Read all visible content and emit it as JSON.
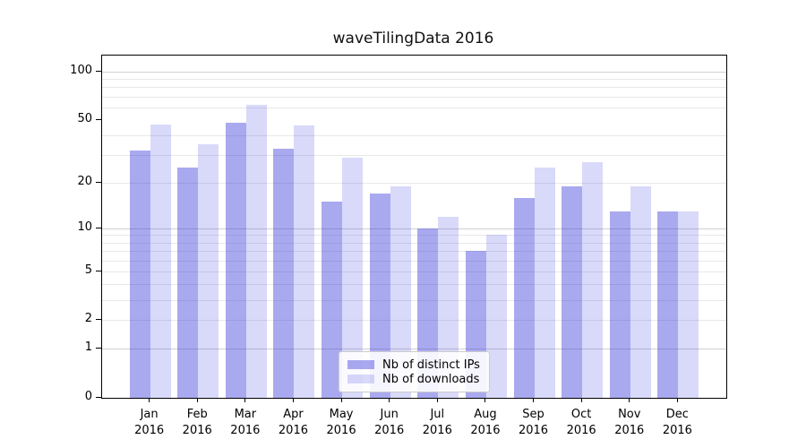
{
  "chart_data": {
    "type": "bar",
    "title": "waveTilingData 2016",
    "categories": [
      "Jan",
      "Feb",
      "Mar",
      "Apr",
      "May",
      "Jun",
      "Jul",
      "Aug",
      "Sep",
      "Oct",
      "Nov",
      "Dec"
    ],
    "year": "2016",
    "series": [
      {
        "name": "Nb of distinct IPs",
        "color": "#3232dc",
        "alpha": 0.42,
        "color_on_white": "#a8a8f0",
        "values": [
          32,
          25,
          48,
          33,
          15,
          17,
          10,
          7,
          16,
          19,
          13,
          13
        ]
      },
      {
        "name": "Nb of downloads",
        "color": "#3232dc",
        "alpha": 0.185,
        "color_on_white": "#d9d9f8",
        "values": [
          47,
          35,
          62,
          46,
          29,
          19,
          12,
          9,
          25,
          27,
          19,
          13
        ]
      }
    ],
    "yscale": "log1p",
    "ylim": [
      0,
      126
    ],
    "y_ticks": [
      0,
      1,
      2,
      5,
      10,
      20,
      50,
      100
    ],
    "grid_minor": [
      2,
      3,
      4,
      5,
      6,
      7,
      8,
      9,
      20,
      30,
      40,
      60,
      70,
      80,
      90
    ],
    "grid_major": [
      1,
      10,
      100
    ],
    "xlabel": "",
    "ylabel": "",
    "grid": true,
    "legend_position": "lower center"
  }
}
